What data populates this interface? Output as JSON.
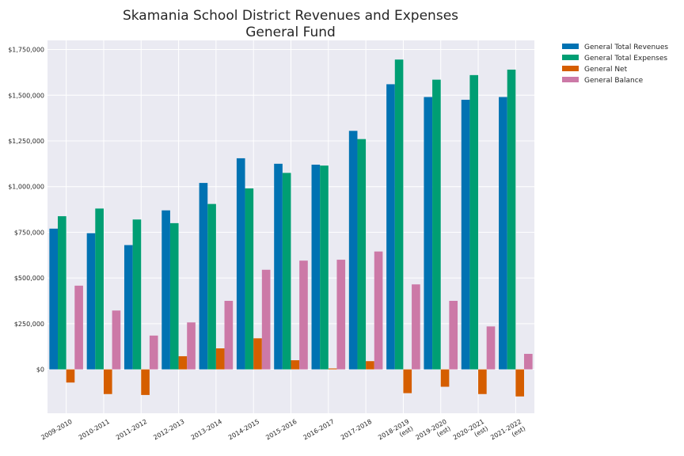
{
  "chart_data": {
    "type": "bar",
    "title": "Skamania School District Revenues and Expenses",
    "subtitle": "General Fund",
    "xlabel": "",
    "ylabel": "",
    "ylim": [
      -240000,
      1800000
    ],
    "yticks": [
      0,
      250000,
      500000,
      750000,
      1000000,
      1250000,
      1500000,
      1750000
    ],
    "ytick_labels": [
      "$0",
      "$250,000",
      "$500,000",
      "$750,000",
      "$1,000,000",
      "$1,250,000",
      "$1,500,000",
      "$1,750,000"
    ],
    "grid": true,
    "legend_position": "outside top-right",
    "categories": [
      [
        "2009-2010"
      ],
      [
        "2010-2011"
      ],
      [
        "2011-2012"
      ],
      [
        "2012-2013"
      ],
      [
        "2013-2014"
      ],
      [
        "2014-2015"
      ],
      [
        "2015-2016"
      ],
      [
        "2016-2017"
      ],
      [
        "2017-2018"
      ],
      [
        "2018-2019",
        "(est)"
      ],
      [
        "2019-2020",
        "(est)"
      ],
      [
        "2020-2021",
        "(est)"
      ],
      [
        "2021-2022",
        "(est)"
      ]
    ],
    "series": [
      {
        "name": "General Total Revenues",
        "color": "#0072b2",
        "values": [
          770000,
          745000,
          680000,
          870000,
          1020000,
          1155000,
          1125000,
          1120000,
          1305000,
          1560000,
          1490000,
          1475000,
          1490000
        ]
      },
      {
        "name": "General Total Expenses",
        "color": "#009e73",
        "values": [
          838000,
          880000,
          820000,
          800000,
          905000,
          990000,
          1075000,
          1115000,
          1260000,
          1695000,
          1585000,
          1610000,
          1640000
        ]
      },
      {
        "name": "General Net",
        "color": "#d55e00",
        "values": [
          -72000,
          -135000,
          -140000,
          72000,
          115000,
          170000,
          50000,
          5000,
          45000,
          -130000,
          -95000,
          -135000,
          -148000
        ]
      },
      {
        "name": "General Balance",
        "color": "#cc79a7",
        "values": [
          458000,
          322000,
          185000,
          257000,
          375000,
          545000,
          595000,
          600000,
          645000,
          465000,
          375000,
          235000,
          85000
        ]
      }
    ]
  }
}
